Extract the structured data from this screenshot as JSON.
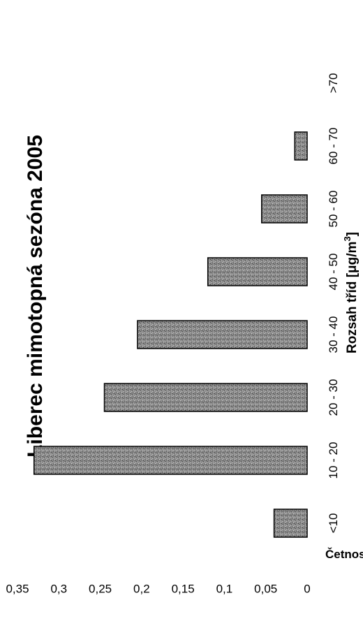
{
  "chart_data": {
    "type": "bar",
    "title": "Liberec mimotopná sezóna 2005",
    "xlabel": "Rozsah tříd [μg/m³]",
    "xlabel_text": "Rozsah tříd [μg/m",
    "xlabel_sup": "3",
    "xlabel_end": "]",
    "ylabel": "Četnosti",
    "categories": [
      "<10",
      "10 - 20",
      "20 - 30",
      "30 - 40",
      "40 - 50",
      "50 - 60",
      "60 - 70",
      ">70"
    ],
    "values": [
      0.04,
      0.33,
      0.245,
      0.205,
      0.12,
      0.055,
      0.015,
      0
    ],
    "yticks": [
      "0",
      "0,05",
      "0,1",
      "0,15",
      "0,2",
      "0,25",
      "0,3",
      "0,35"
    ],
    "ylim": [
      0,
      0.35
    ],
    "bar_color": "#8a8a8a",
    "legend": "none",
    "grid": false,
    "orientation": "rotated-90-ccw"
  }
}
